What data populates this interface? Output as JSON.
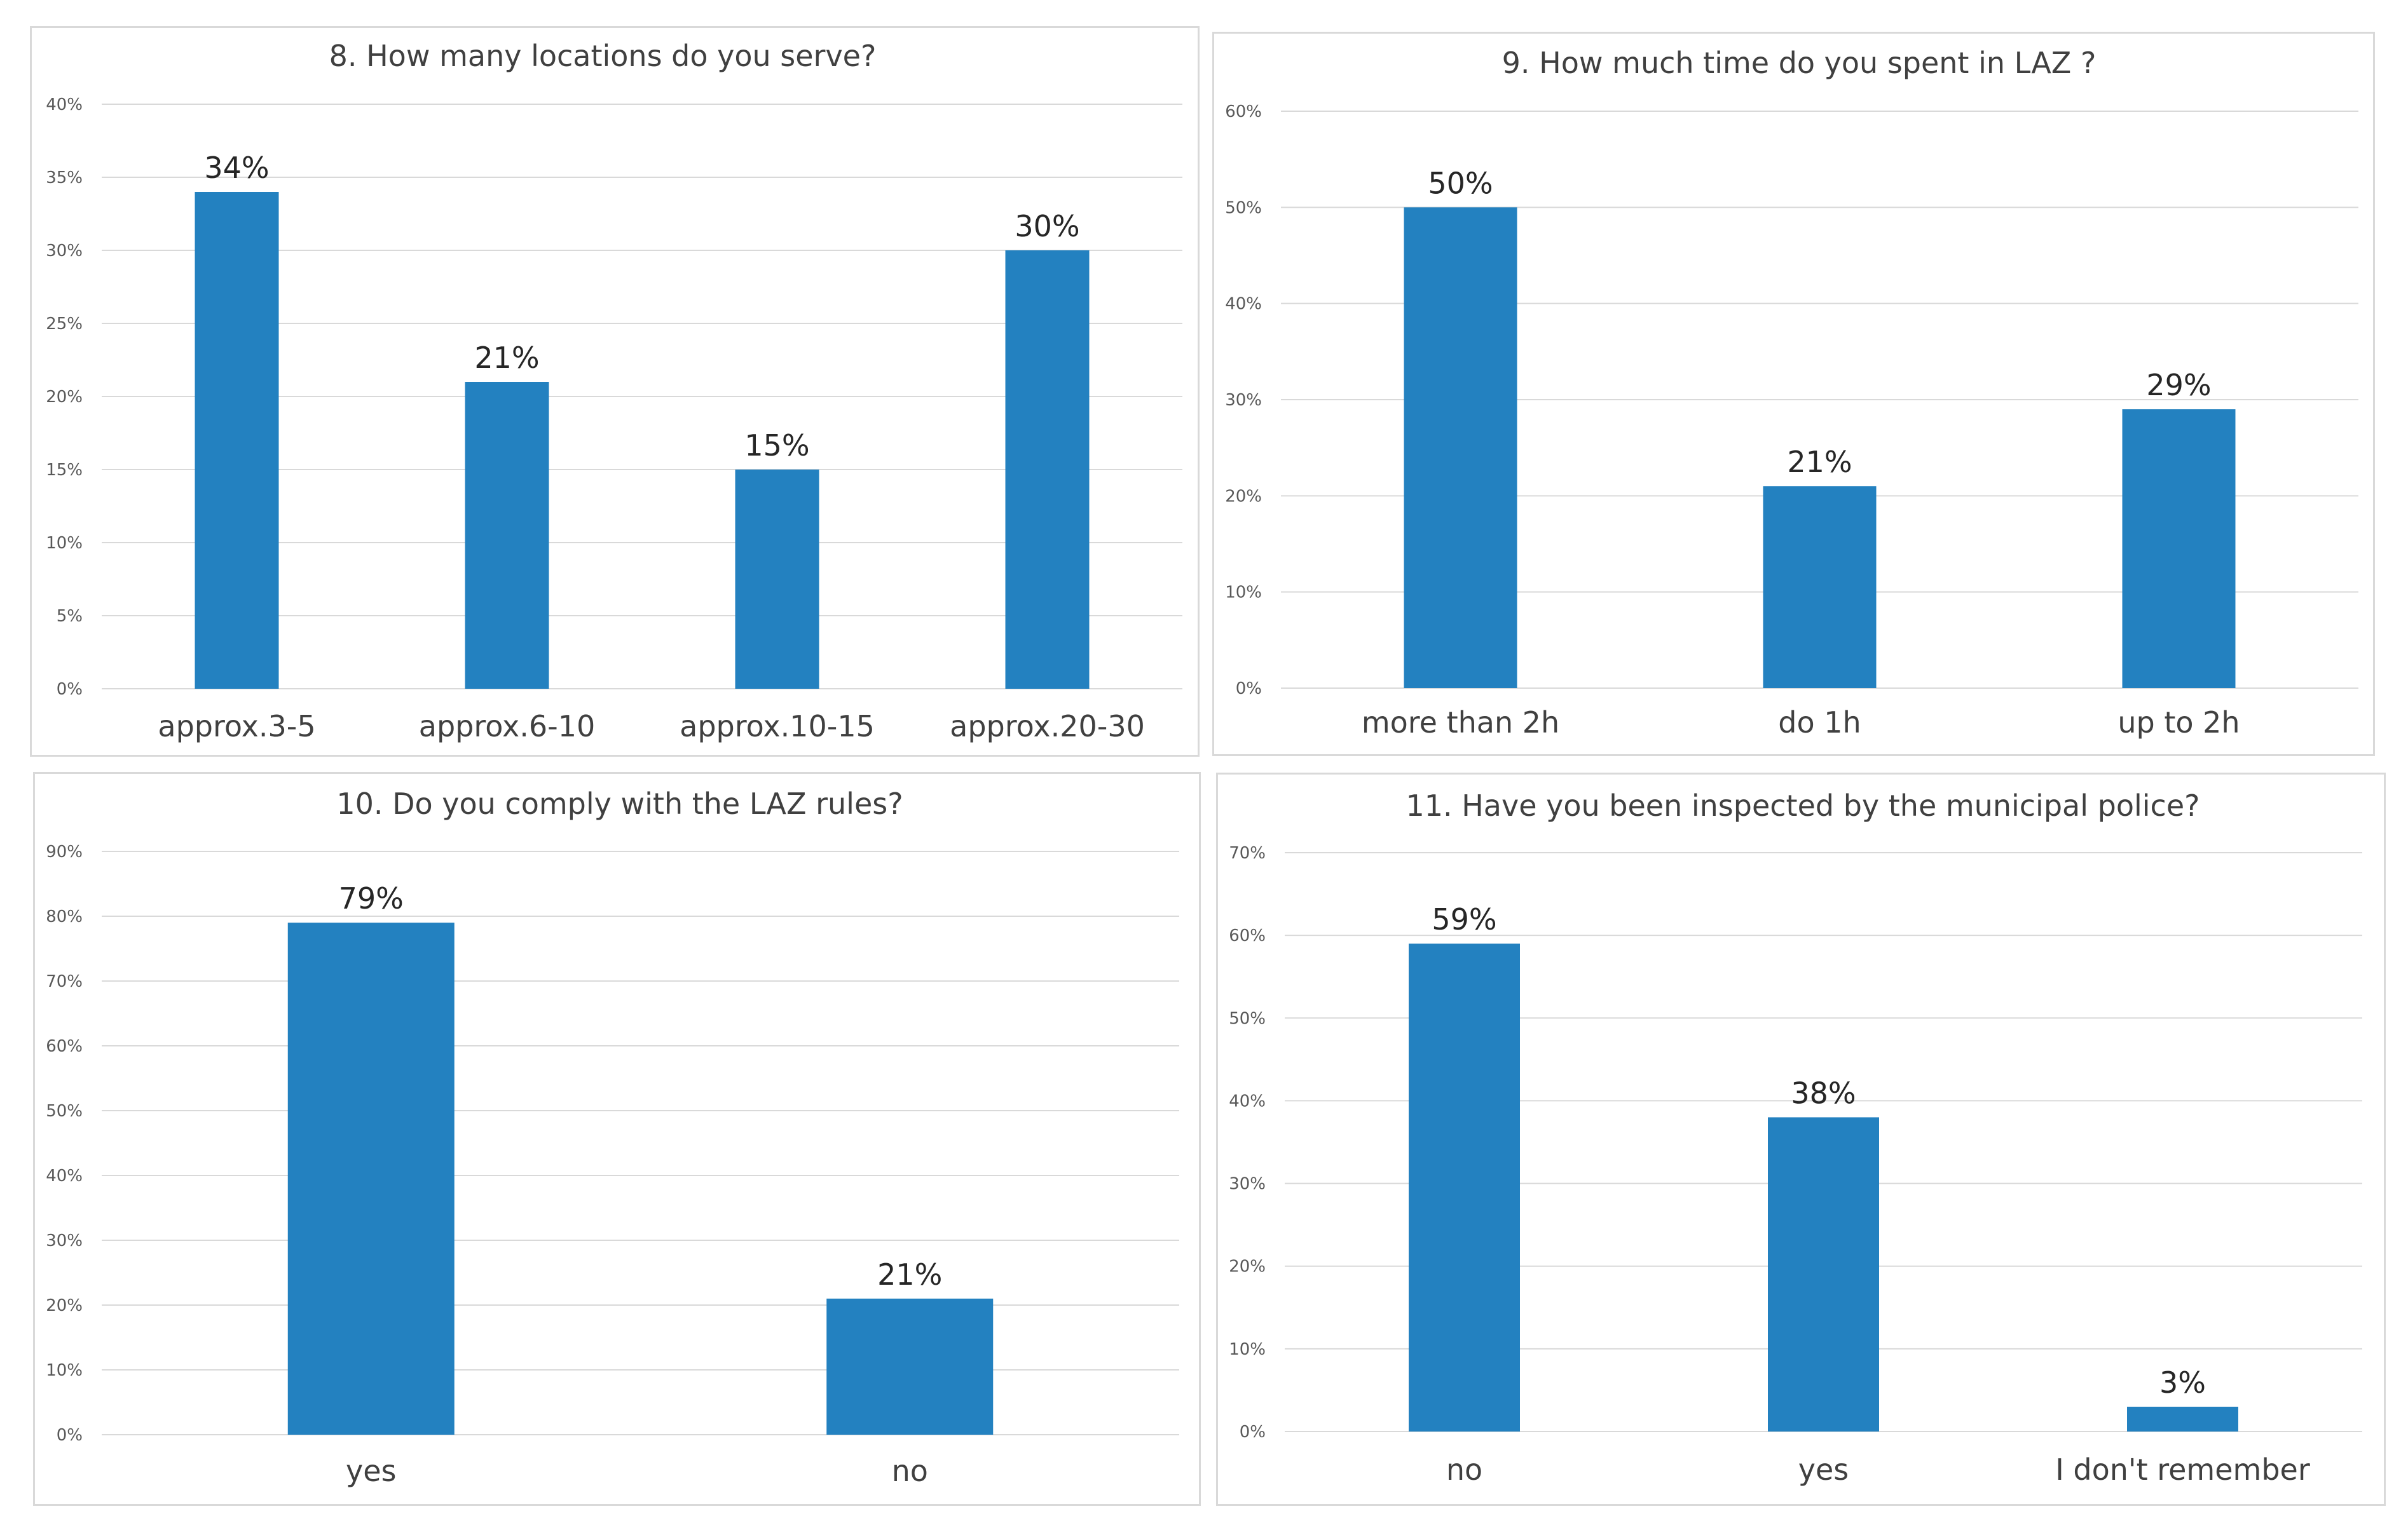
{
  "colors": {
    "bar": "#2381c0",
    "grid": "#d9d9d9",
    "text": "#404040"
  },
  "chart_data": [
    {
      "type": "bar",
      "title": "8. How many locations do you serve?",
      "categories": [
        "approx.3-5",
        "approx.6-10",
        "approx.10-15",
        "approx.20-30"
      ],
      "values": [
        34,
        21,
        15,
        30
      ],
      "value_labels": [
        "34%",
        "21%",
        "15%",
        "30%"
      ],
      "ylim": [
        0,
        40
      ],
      "yticks": [
        "0%",
        "5%",
        "10%",
        "15%",
        "20%",
        "25%",
        "30%",
        "35%",
        "40%"
      ],
      "xlabel": "",
      "ylabel": "",
      "grid": true,
      "legend": "none"
    },
    {
      "type": "bar",
      "title": "9. How much time do you spent in LAZ ?",
      "categories": [
        "more than 2h",
        "do 1h",
        "up to 2h"
      ],
      "values": [
        50,
        21,
        29
      ],
      "value_labels": [
        "50%",
        "21%",
        "29%"
      ],
      "ylim": [
        0,
        60
      ],
      "yticks": [
        "0%",
        "10%",
        "20%",
        "30%",
        "40%",
        "50%",
        "60%"
      ],
      "xlabel": "",
      "ylabel": "",
      "grid": true,
      "legend": "none"
    },
    {
      "type": "bar",
      "title": "10. Do you comply with the LAZ rules?",
      "categories": [
        "yes",
        "no"
      ],
      "values": [
        79,
        21
      ],
      "value_labels": [
        "79%",
        "21%"
      ],
      "ylim": [
        0,
        90
      ],
      "yticks": [
        "0%",
        "10%",
        "20%",
        "30%",
        "40%",
        "50%",
        "60%",
        "70%",
        "80%",
        "90%"
      ],
      "xlabel": "",
      "ylabel": "",
      "grid": true,
      "legend": "none"
    },
    {
      "type": "bar",
      "title": "11. Have you been inspected by the municipal police?",
      "categories": [
        "no",
        "yes",
        "I don't remember"
      ],
      "values": [
        59,
        38,
        3
      ],
      "value_labels": [
        "59%",
        "38%",
        "3%"
      ],
      "ylim": [
        0,
        70
      ],
      "yticks": [
        "0%",
        "10%",
        "20%",
        "30%",
        "40%",
        "50%",
        "60%",
        "70%"
      ],
      "xlabel": "",
      "ylabel": "",
      "grid": true,
      "legend": "none"
    }
  ]
}
